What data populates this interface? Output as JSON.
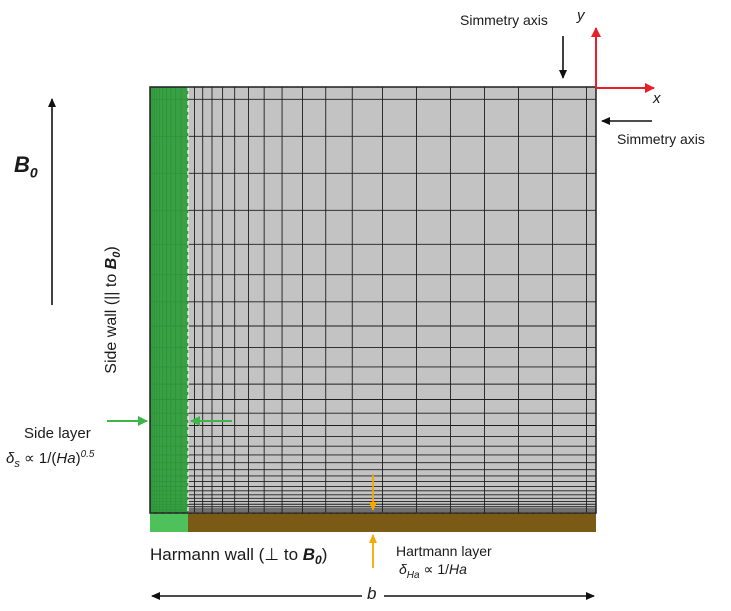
{
  "labels": {
    "symmetry_axis_top": "Simmetry axis",
    "symmetry_axis_right": "Simmetry axis",
    "y_axis": "y",
    "x_axis": "x",
    "field_symbol": "B",
    "field_subscript": "0",
    "side_wall_prefix": "Side wall (|| to ",
    "side_wall_B": "B",
    "side_wall_sub": "0",
    "side_wall_suffix": ")",
    "side_layer_title": "Side layer",
    "side_layer_delta": "δ",
    "side_layer_delta_sub": "s",
    "side_layer_relation": " ∝ 1/(",
    "side_layer_Ha": "Ha",
    "side_layer_close": ")",
    "side_layer_exp": "0.5",
    "hartmann_wall_prefix": "Harmann wall (⊥ to ",
    "hartmann_wall_B": "B",
    "hartmann_wall_sub": "0",
    "hartmann_wall_suffix": ")",
    "hartmann_layer_title": "Hartmann layer",
    "hartmann_layer_delta": "δ",
    "hartmann_layer_delta_sub": "Ha",
    "hartmann_layer_relation": " ∝ 1/",
    "hartmann_layer_Ha": "Ha",
    "width_label": "b"
  },
  "colors": {
    "mesh_fill": "#c3c3c3",
    "mesh_line": "#1e1e1e",
    "side_wall": "#2e9e3a",
    "side_wall_light": "#4fc15a",
    "hartmann_wall": "#7a5a14",
    "axis_red": "#e8202a",
    "green_arrow": "#3db54a",
    "orange_arrow": "#f5a800",
    "black": "#111111"
  }
}
